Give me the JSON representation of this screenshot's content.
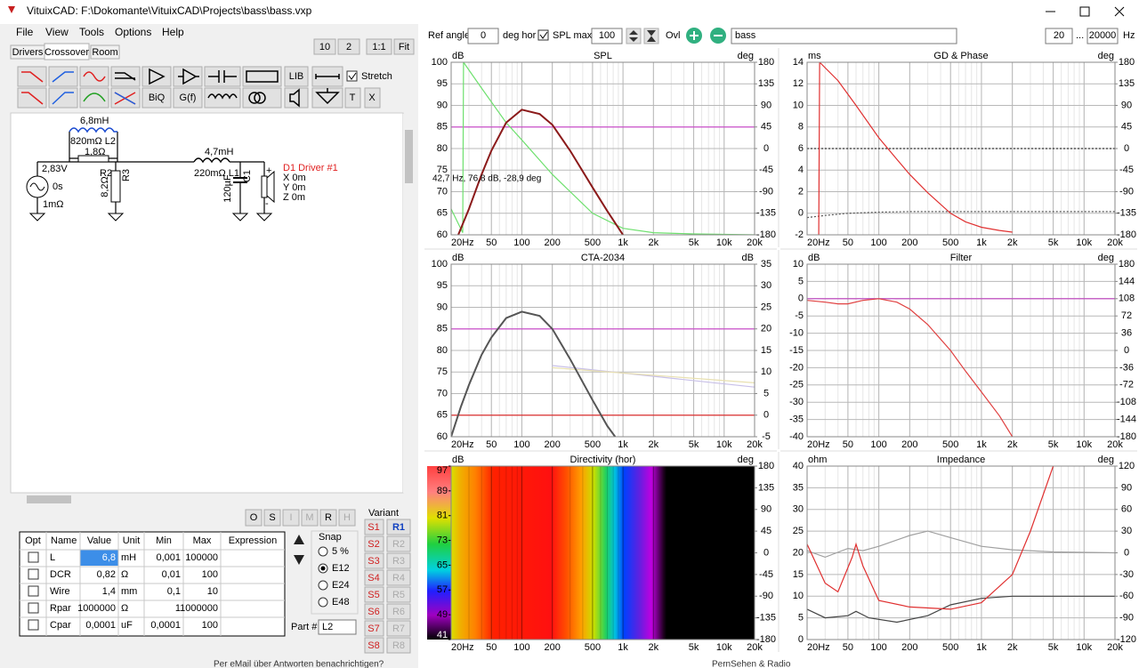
{
  "window": {
    "title": "VituixCAD: F:\\Dokomante\\VituixCAD\\Projects\\bass\\bass.vxp"
  },
  "menu": [
    "File",
    "View",
    "Tools",
    "Options",
    "Help"
  ],
  "tabs": [
    "Drivers",
    "Crossover",
    "Room"
  ],
  "zoom": [
    "10",
    "2",
    "1:1",
    "Fit"
  ],
  "toolbar": {
    "lib": "LIB",
    "biq": "BiQ",
    "gf": "G(f)",
    "t": "T",
    "x": "X",
    "stretch": "Stretch"
  },
  "schematic": {
    "l2_value": "6,8mH",
    "l2_dcr": "820mΩ L2",
    "r_par": "1,8Ω",
    "source_v": "2,83V",
    "source_t": "0s",
    "source_r": "1mΩ",
    "r2": "R2",
    "r2_value": "8,2Ω",
    "r3": "R3",
    "l1_value": "4,7mH",
    "l1_dcr": "220mΩ L1",
    "c1_value": "120µF",
    "c1": "C1",
    "driver": "D1 Driver #1",
    "x": "X 0m",
    "y": "Y 0m",
    "z": "Z 0m",
    "plus": "+",
    "minus": "-"
  },
  "part_buttons": [
    "O",
    "S",
    "I",
    "M",
    "R",
    "H"
  ],
  "table": {
    "headers": [
      "Opt",
      "Name",
      "Value",
      "Unit",
      "Min",
      "Max",
      "Expression"
    ],
    "rows": [
      [
        "L",
        "6,8",
        "mH",
        "0,001",
        "100000"
      ],
      [
        "DCR",
        "0,82",
        "Ω",
        "0,01",
        "100"
      ],
      [
        "Wire",
        "1,4",
        "mm",
        "0,1",
        "10"
      ],
      [
        "Rpar",
        "1000000",
        "Ω",
        "1",
        "1000000"
      ],
      [
        "Cpar",
        "0,0001",
        "uF",
        "0,0001",
        "100"
      ]
    ]
  },
  "snap": {
    "title": "Snap",
    "options": [
      "5 %",
      "E12",
      "E24",
      "E48"
    ],
    "selected": 1
  },
  "part": {
    "label": "Part #",
    "value": "L2"
  },
  "variant": {
    "title": "Variant",
    "s": [
      "S1",
      "S2",
      "S3",
      "S4",
      "S5",
      "S6",
      "S7",
      "S8"
    ],
    "r": [
      "R1",
      "R2",
      "R3",
      "R4",
      "R5",
      "R6",
      "R7",
      "R8"
    ],
    "selected": 0
  },
  "top_bar": {
    "ref_angle": "Ref angle",
    "angle": "0",
    "deg_hor": "deg hor",
    "spl_max_label": "SPL max",
    "spl_max": "100",
    "ovl": "Ovl",
    "overlay": "bass",
    "f_min": "20",
    "dots": "...",
    "f_max": "20000",
    "hz": "Hz"
  },
  "taskbar": [
    "Per eMail über Antworten benachrichtigen?",
    "PernSehen & Radio"
  ],
  "charts": [
    {
      "type": "line",
      "title": "SPL",
      "ylabel": "dB",
      "y2label": "deg",
      "xscale": "log",
      "xlim": [
        20,
        20000
      ],
      "ylim": [
        60,
        100
      ],
      "yticks": [
        100,
        95,
        90,
        85,
        80,
        75,
        70,
        65,
        60
      ],
      "y2lim": [
        -180,
        180
      ],
      "y2ticks": [
        180,
        135,
        90,
        45,
        0,
        -45,
        -90,
        -135,
        -180
      ],
      "xticks": [
        {
          "value": 20,
          "label": "20Hz"
        },
        50,
        100,
        200,
        500,
        {
          "value": 1000,
          "label": "1k"
        },
        {
          "value": 2000,
          "label": "2k"
        },
        {
          "value": 5000,
          "label": "5k"
        },
        {
          "value": 10000,
          "label": "10k"
        },
        {
          "value": 20000,
          "label": "20k"
        }
      ],
      "annotation": "42,7 Hz, 76,8 dB, -28,9 deg",
      "series": [
        {
          "color": "#cc44cc",
          "x": [
            20,
            20000
          ],
          "values": [
            85,
            85
          ]
        },
        {
          "color": "#6ee06e",
          "x": [
            20,
            26,
            26.5,
            40,
            70,
            100,
            200,
            500,
            1000,
            2000,
            5000,
            20000
          ],
          "values": [
            66,
            60.5,
            100,
            94,
            86,
            82,
            74,
            65,
            61.5,
            60.5,
            60.2,
            60
          ]
        },
        {
          "color": "#8b1a1a",
          "x": [
            20,
            30,
            40,
            50,
            70,
            100,
            150,
            200,
            300,
            500,
            700,
            1000
          ],
          "values": [
            56,
            66,
            74,
            79.5,
            86,
            89,
            88,
            85.5,
            79.5,
            71,
            65.5,
            60
          ]
        }
      ]
    },
    {
      "type": "line",
      "title": "GD & Phase",
      "ylabel": "ms",
      "y2label": "deg",
      "xscale": "log",
      "xlim": [
        20,
        20000
      ],
      "ylim": [
        -2,
        14
      ],
      "yticks": [
        14,
        12,
        10,
        8,
        6,
        4,
        2,
        0,
        -2
      ],
      "y2lim": [
        -180,
        180
      ],
      "y2ticks": [
        180,
        135,
        90,
        45,
        0,
        -45,
        -90,
        -135,
        -180
      ],
      "xticks": [
        {
          "value": 20,
          "label": "20Hz"
        },
        50,
        100,
        200,
        500,
        {
          "value": 1000,
          "label": "1k"
        },
        {
          "value": 2000,
          "label": "2k"
        },
        {
          "value": 5000,
          "label": "5k"
        },
        {
          "value": 10000,
          "label": "10k"
        },
        {
          "value": 20000,
          "label": "20k"
        }
      ],
      "series": [
        {
          "color": "#333333",
          "dash": true,
          "axis": "y2",
          "x": [
            20,
            20000
          ],
          "values": [
            0,
            0
          ]
        },
        {
          "color": "#555555",
          "dash": true,
          "x": [
            20,
            30,
            50,
            100,
            200,
            20000
          ],
          "values": [
            -0.4,
            -0.2,
            0,
            0.1,
            0.15,
            0.15
          ]
        },
        {
          "color": "#e03030",
          "x": [
            26,
            26.5,
            40,
            60,
            100,
            150,
            200,
            300,
            500,
            700,
            1000,
            1500,
            2000
          ],
          "values": [
            -2,
            14,
            12.3,
            10,
            7,
            5,
            3.6,
            1.9,
            0,
            -0.8,
            -1.3,
            -1.6,
            -1.75
          ]
        }
      ]
    },
    {
      "type": "line",
      "title": "CTA-2034",
      "ylabel": "dB",
      "y2label": "dB",
      "xscale": "log",
      "xlim": [
        20,
        20000
      ],
      "ylim": [
        60,
        100
      ],
      "yticks": [
        100,
        95,
        90,
        85,
        80,
        75,
        70,
        65,
        60
      ],
      "y2lim": [
        -5,
        35
      ],
      "y2ticks": [
        35,
        30,
        25,
        20,
        15,
        10,
        5,
        0,
        -5
      ],
      "xticks": [
        {
          "value": 20,
          "label": "20Hz"
        },
        50,
        100,
        200,
        500,
        {
          "value": 1000,
          "label": "1k"
        },
        {
          "value": 2000,
          "label": "2k"
        },
        {
          "value": 5000,
          "label": "5k"
        },
        {
          "value": 10000,
          "label": "10k"
        },
        {
          "value": 20000,
          "label": "20k"
        }
      ],
      "series": [
        {
          "color": "#cc44cc",
          "x": [
            20,
            20000
          ],
          "values": [
            85,
            85
          ]
        },
        {
          "color": "#e02020",
          "x": [
            20,
            20000
          ],
          "values": [
            65,
            65
          ]
        },
        {
          "color": "#c8c0e8",
          "axis": "y2",
          "x": [
            200,
            20000
          ],
          "values": [
            11.5,
            6.5
          ]
        },
        {
          "color": "#e8e0b0",
          "axis": "y2",
          "x": [
            200,
            20000
          ],
          "values": [
            11,
            7.5
          ]
        },
        {
          "color": "#555555",
          "x": [
            20,
            25,
            30,
            40,
            50,
            70,
            100,
            150,
            200,
            300,
            500,
            700,
            900
          ],
          "values": [
            60,
            67,
            72,
            79,
            83,
            87.5,
            89,
            88,
            85,
            78,
            68.5,
            62.5,
            59
          ]
        }
      ]
    },
    {
      "type": "line",
      "title": "Filter",
      "ylabel": "dB",
      "y2label": "deg",
      "xscale": "log",
      "xlim": [
        20,
        20000
      ],
      "ylim": [
        -40,
        10
      ],
      "yticks": [
        10,
        5,
        0,
        -5,
        -10,
        -15,
        -20,
        -25,
        -30,
        -35,
        -40
      ],
      "y2lim": [
        -180,
        180
      ],
      "y2ticks": [
        180,
        144,
        108,
        72,
        36,
        0,
        -36,
        -72,
        -108,
        -144,
        -180
      ],
      "xticks": [
        {
          "value": 20,
          "label": "20Hz"
        },
        50,
        100,
        200,
        500,
        {
          "value": 1000,
          "label": "1k"
        },
        {
          "value": 2000,
          "label": "2k"
        },
        {
          "value": 5000,
          "label": "5k"
        },
        {
          "value": 10000,
          "label": "10k"
        },
        {
          "value": 20000,
          "label": "20k"
        }
      ],
      "series": [
        {
          "color": "#c040c0",
          "x": [
            20,
            20000
          ],
          "values": [
            0,
            0
          ]
        },
        {
          "color": "#e04040",
          "x": [
            20,
            30,
            40,
            50,
            70,
            100,
            150,
            200,
            300,
            500,
            700,
            1000,
            1500,
            2000
          ],
          "values": [
            -0.5,
            -1,
            -1.5,
            -1.5,
            -0.5,
            0,
            -1,
            -3,
            -7.5,
            -15,
            -21,
            -27,
            -34,
            -40
          ]
        }
      ]
    },
    {
      "type": "heatmap",
      "title": "Directivity (hor)",
      "ylabel": "dB",
      "y2label": "deg",
      "xscale": "log",
      "xlim": [
        20,
        20000
      ],
      "clim": [
        41,
        97
      ],
      "cticks": [
        97,
        89,
        81,
        73,
        65,
        57,
        49,
        41
      ],
      "y2lim": [
        -180,
        180
      ],
      "y2ticks": [
        180,
        135,
        90,
        45,
        0,
        -45,
        -90,
        -135,
        -180
      ],
      "xticks": [
        {
          "value": 20,
          "label": "20Hz"
        },
        50,
        100,
        200,
        500,
        {
          "value": 1000,
          "label": "1k"
        },
        {
          "value": 2000,
          "label": "2k"
        },
        {
          "value": 5000,
          "label": "5k"
        },
        {
          "value": 10000,
          "label": "10k"
        },
        {
          "value": 20000,
          "label": "20k"
        }
      ]
    },
    {
      "type": "line",
      "title": "Impedance",
      "ylabel": "ohm",
      "y2label": "deg",
      "xscale": "log",
      "xlim": [
        20,
        20000
      ],
      "ylim": [
        0,
        40
      ],
      "yticks": [
        40,
        35,
        30,
        25,
        20,
        15,
        10,
        5,
        0
      ],
      "y2lim": [
        -120,
        120
      ],
      "y2ticks": [
        120,
        90,
        60,
        30,
        0,
        -30,
        -60,
        -90,
        -120
      ],
      "xticks": [
        {
          "value": 20,
          "label": "20Hz"
        },
        50,
        100,
        200,
        500,
        {
          "value": 1000,
          "label": "1k"
        },
        {
          "value": 2000,
          "label": "2k"
        },
        {
          "value": 5000,
          "label": "5k"
        },
        {
          "value": 10000,
          "label": "10k"
        },
        {
          "value": 20000,
          "label": "20k"
        }
      ],
      "series": [
        {
          "color": "#a0a0a0",
          "x": [
            20,
            30,
            50,
            70,
            100,
            200,
            300,
            500,
            1000,
            2000,
            5000,
            20000
          ],
          "values": [
            20.5,
            19,
            21,
            20.5,
            21.5,
            24,
            25,
            23.5,
            21.5,
            20.7,
            20.2,
            20
          ]
        },
        {
          "color": "#444444",
          "x": [
            20,
            30,
            50,
            60,
            80,
            150,
            300,
            500,
            1000,
            2000,
            20000
          ],
          "values": [
            7,
            5,
            5.5,
            6.5,
            5,
            4,
            5.5,
            8,
            9.5,
            10,
            10
          ]
        },
        {
          "color": "#e03030",
          "x": [
            20,
            30,
            40,
            55,
            60,
            70,
            100,
            200,
            500,
            1000,
            2000,
            3000,
            5000
          ],
          "values": [
            22,
            13,
            11,
            19,
            22,
            17,
            9,
            7.5,
            7,
            8.5,
            15,
            25,
            40
          ]
        }
      ]
    }
  ]
}
